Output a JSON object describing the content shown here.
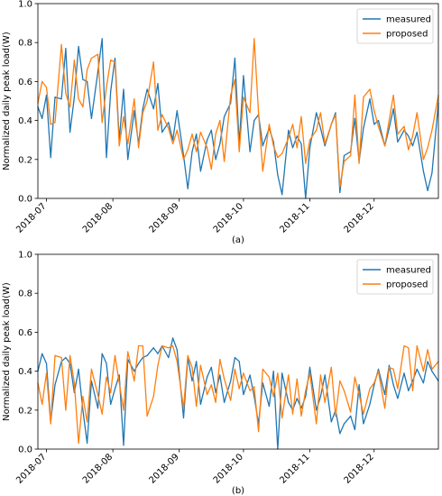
{
  "colors": {
    "measured": "#1f77b4",
    "proposed": "#ff7f0e",
    "axis": "#000000",
    "background": "#ffffff"
  },
  "chart_data": [
    {
      "type": "line",
      "caption": "(a)",
      "ylabel": "Normalized daily peak load(W)",
      "xlabel": "",
      "ylim": [
        0.0,
        1.0
      ],
      "yticks": [
        "0.0",
        "0.2",
        "0.4",
        "0.6",
        "0.8",
        "1.0"
      ],
      "xlim": [
        "2018-06-27",
        "2018-12-31"
      ],
      "xticks": [
        {
          "date": "2018-07-01",
          "label": "2018-07"
        },
        {
          "date": "2018-08-01",
          "label": "2018-08"
        },
        {
          "date": "2018-09-01",
          "label": "2018-09"
        },
        {
          "date": "2018-10-01",
          "label": "2018-10"
        },
        {
          "date": "2018-11-01",
          "label": "2018-11"
        },
        {
          "date": "2018-12-01",
          "label": "2018-12"
        }
      ],
      "grid": false,
      "legend_position": "top-right",
      "x": [
        "2018-06-27",
        "2018-06-29",
        "2018-07-01",
        "2018-07-03",
        "2018-07-05",
        "2018-07-08",
        "2018-07-10",
        "2018-07-12",
        "2018-07-14",
        "2018-07-16",
        "2018-07-18",
        "2018-07-20",
        "2018-07-22",
        "2018-07-25",
        "2018-07-27",
        "2018-07-29",
        "2018-07-31",
        "2018-08-02",
        "2018-08-04",
        "2018-08-06",
        "2018-08-08",
        "2018-08-11",
        "2018-08-13",
        "2018-08-15",
        "2018-08-17",
        "2018-08-20",
        "2018-08-22",
        "2018-08-24",
        "2018-08-27",
        "2018-08-29",
        "2018-08-31",
        "2018-09-03",
        "2018-09-05",
        "2018-09-07",
        "2018-09-09",
        "2018-09-11",
        "2018-09-14",
        "2018-09-16",
        "2018-09-18",
        "2018-09-20",
        "2018-09-22",
        "2018-09-25",
        "2018-09-27",
        "2018-09-29",
        "2018-10-01",
        "2018-10-04",
        "2018-10-06",
        "2018-10-08",
        "2018-10-10",
        "2018-10-13",
        "2018-10-15",
        "2018-10-17",
        "2018-10-19",
        "2018-10-22",
        "2018-10-24",
        "2018-10-26",
        "2018-10-28",
        "2018-10-30",
        "2018-11-01",
        "2018-11-04",
        "2018-11-06",
        "2018-11-08",
        "2018-11-11",
        "2018-11-13",
        "2018-11-15",
        "2018-11-17",
        "2018-11-20",
        "2018-11-22",
        "2018-11-24",
        "2018-11-26",
        "2018-11-29",
        "2018-12-01",
        "2018-12-03",
        "2018-12-06",
        "2018-12-08",
        "2018-12-10",
        "2018-12-12",
        "2018-12-15",
        "2018-12-17",
        "2018-12-19",
        "2018-12-21",
        "2018-12-24",
        "2018-12-26",
        "2018-12-28",
        "2018-12-31"
      ],
      "series": [
        {
          "name": "measured",
          "color": "#1f77b4",
          "values": [
            0.47,
            0.41,
            0.53,
            0.21,
            0.52,
            0.51,
            0.77,
            0.34,
            0.52,
            0.78,
            0.61,
            0.6,
            0.41,
            0.65,
            0.82,
            0.21,
            0.55,
            0.72,
            0.3,
            0.56,
            0.2,
            0.45,
            0.28,
            0.46,
            0.56,
            0.46,
            0.59,
            0.34,
            0.39,
            0.3,
            0.45,
            0.22,
            0.05,
            0.24,
            0.33,
            0.14,
            0.3,
            0.35,
            0.2,
            0.28,
            0.42,
            0.49,
            0.72,
            0.28,
            0.63,
            0.24,
            0.4,
            0.43,
            0.27,
            0.36,
            0.29,
            0.12,
            0.02,
            0.35,
            0.26,
            0.32,
            0.28,
            0.0,
            0.26,
            0.44,
            0.36,
            0.27,
            0.38,
            0.44,
            0.03,
            0.22,
            0.24,
            0.41,
            0.19,
            0.36,
            0.51,
            0.38,
            0.4,
            0.27,
            0.36,
            0.46,
            0.29,
            0.35,
            0.32,
            0.27,
            0.34,
            0.14,
            0.04,
            0.13,
            0.49
          ]
        },
        {
          "name": "proposed",
          "color": "#ff7f0e",
          "values": [
            0.49,
            0.6,
            0.57,
            0.38,
            0.39,
            0.79,
            0.54,
            0.47,
            0.71,
            0.51,
            0.47,
            0.66,
            0.72,
            0.74,
            0.39,
            0.57,
            0.71,
            0.7,
            0.27,
            0.42,
            0.28,
            0.51,
            0.26,
            0.44,
            0.5,
            0.7,
            0.35,
            0.43,
            0.36,
            0.28,
            0.35,
            0.2,
            0.25,
            0.33,
            0.24,
            0.34,
            0.26,
            0.15,
            0.33,
            0.4,
            0.19,
            0.53,
            0.61,
            0.24,
            0.52,
            0.44,
            0.82,
            0.44,
            0.14,
            0.38,
            0.27,
            0.21,
            0.23,
            0.31,
            0.38,
            0.26,
            0.42,
            0.18,
            0.3,
            0.35,
            0.44,
            0.28,
            0.38,
            0.43,
            0.06,
            0.19,
            0.22,
            0.53,
            0.18,
            0.52,
            0.56,
            0.45,
            0.37,
            0.27,
            0.4,
            0.53,
            0.33,
            0.37,
            0.25,
            0.32,
            0.44,
            0.2,
            0.26,
            0.35,
            0.53
          ]
        }
      ]
    },
    {
      "type": "line",
      "caption": "(b)",
      "ylabel": "Normalized daily peak load(W)",
      "xlabel": "",
      "ylim": [
        0.0,
        1.0
      ],
      "yticks": [
        "0.0",
        "0.2",
        "0.4",
        "0.6",
        "0.8",
        "1.0"
      ],
      "xlim": [
        "2018-06-27",
        "2018-12-31"
      ],
      "xticks": [
        {
          "date": "2018-07-01",
          "label": "2018-07"
        },
        {
          "date": "2018-08-01",
          "label": "2018-08"
        },
        {
          "date": "2018-09-01",
          "label": "2018-09"
        },
        {
          "date": "2018-10-01",
          "label": "2018-10"
        },
        {
          "date": "2018-11-01",
          "label": "2018-11"
        },
        {
          "date": "2018-12-01",
          "label": "2018-12"
        }
      ],
      "grid": false,
      "legend_position": "top-right",
      "x": [
        "2018-06-27",
        "2018-06-29",
        "2018-07-01",
        "2018-07-03",
        "2018-07-05",
        "2018-07-08",
        "2018-07-10",
        "2018-07-12",
        "2018-07-14",
        "2018-07-16",
        "2018-07-18",
        "2018-07-20",
        "2018-07-22",
        "2018-07-25",
        "2018-07-27",
        "2018-07-29",
        "2018-07-31",
        "2018-08-02",
        "2018-08-04",
        "2018-08-06",
        "2018-08-08",
        "2018-08-11",
        "2018-08-13",
        "2018-08-15",
        "2018-08-17",
        "2018-08-20",
        "2018-08-22",
        "2018-08-24",
        "2018-08-27",
        "2018-08-29",
        "2018-08-31",
        "2018-09-03",
        "2018-09-05",
        "2018-09-07",
        "2018-09-09",
        "2018-09-11",
        "2018-09-14",
        "2018-09-16",
        "2018-09-18",
        "2018-09-20",
        "2018-09-22",
        "2018-09-25",
        "2018-09-27",
        "2018-09-29",
        "2018-10-01",
        "2018-10-04",
        "2018-10-06",
        "2018-10-08",
        "2018-10-10",
        "2018-10-13",
        "2018-10-15",
        "2018-10-17",
        "2018-10-19",
        "2018-10-22",
        "2018-10-24",
        "2018-10-26",
        "2018-10-28",
        "2018-10-30",
        "2018-11-01",
        "2018-11-04",
        "2018-11-06",
        "2018-11-08",
        "2018-11-11",
        "2018-11-13",
        "2018-11-15",
        "2018-11-17",
        "2018-11-20",
        "2018-11-22",
        "2018-11-24",
        "2018-11-26",
        "2018-11-29",
        "2018-12-01",
        "2018-12-03",
        "2018-12-06",
        "2018-12-08",
        "2018-12-10",
        "2018-12-12",
        "2018-12-15",
        "2018-12-17",
        "2018-12-19",
        "2018-12-21",
        "2018-12-24",
        "2018-12-26",
        "2018-12-28",
        "2018-12-31"
      ],
      "series": [
        {
          "name": "measured",
          "color": "#1f77b4",
          "values": [
            0.4,
            0.49,
            0.44,
            0.14,
            0.33,
            0.45,
            0.47,
            0.44,
            0.29,
            0.41,
            0.2,
            0.03,
            0.35,
            0.21,
            0.49,
            0.44,
            0.23,
            0.31,
            0.38,
            0.02,
            0.46,
            0.4,
            0.44,
            0.47,
            0.48,
            0.52,
            0.49,
            0.53,
            0.47,
            0.57,
            0.51,
            0.16,
            0.47,
            0.35,
            0.45,
            0.23,
            0.37,
            0.42,
            0.29,
            0.38,
            0.24,
            0.35,
            0.47,
            0.45,
            0.28,
            0.38,
            0.27,
            0.13,
            0.34,
            0.22,
            0.4,
            0.0,
            0.39,
            0.24,
            0.2,
            0.26,
            0.21,
            0.27,
            0.42,
            0.2,
            0.27,
            0.38,
            0.14,
            0.2,
            0.08,
            0.13,
            0.17,
            0.1,
            0.33,
            0.13,
            0.23,
            0.33,
            0.41,
            0.28,
            0.43,
            0.33,
            0.26,
            0.39,
            0.3,
            0.35,
            0.41,
            0.34,
            0.45,
            0.4,
            0.35
          ]
        },
        {
          "name": "proposed",
          "color": "#ff7f0e",
          "values": [
            0.34,
            0.23,
            0.39,
            0.13,
            0.48,
            0.47,
            0.2,
            0.48,
            0.34,
            0.03,
            0.27,
            0.14,
            0.41,
            0.28,
            0.18,
            0.37,
            0.29,
            0.48,
            0.34,
            0.2,
            0.5,
            0.35,
            0.53,
            0.53,
            0.17,
            0.27,
            0.43,
            0.53,
            0.52,
            0.53,
            0.45,
            0.21,
            0.48,
            0.42,
            0.22,
            0.43,
            0.28,
            0.33,
            0.24,
            0.46,
            0.36,
            0.25,
            0.41,
            0.31,
            0.39,
            0.3,
            0.32,
            0.09,
            0.41,
            0.37,
            0.27,
            0.39,
            0.16,
            0.38,
            0.18,
            0.36,
            0.17,
            0.3,
            0.39,
            0.13,
            0.38,
            0.24,
            0.42,
            0.17,
            0.35,
            0.3,
            0.19,
            0.37,
            0.28,
            0.18,
            0.31,
            0.34,
            0.4,
            0.21,
            0.42,
            0.41,
            0.31,
            0.53,
            0.52,
            0.3,
            0.53,
            0.4,
            0.51,
            0.41,
            0.45
          ]
        }
      ]
    }
  ]
}
